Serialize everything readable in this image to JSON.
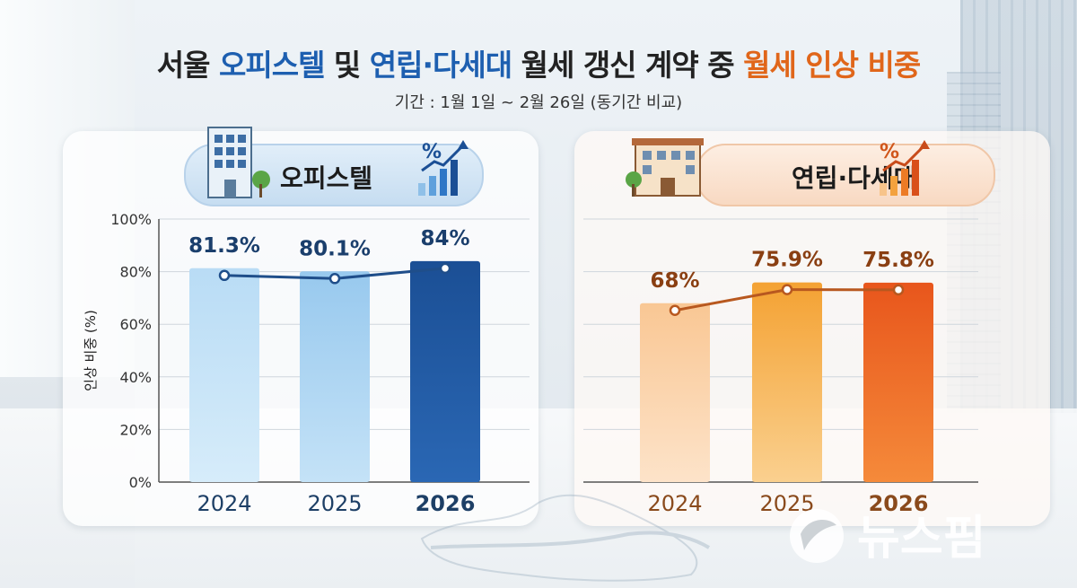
{
  "title": {
    "part1": "서울 ",
    "part2": "오피스텔",
    "part3": " 및 ",
    "part4": "연립·다세대",
    "part5": " 월세 갱신 계약 중 ",
    "part6": "월세 인상 비중"
  },
  "subtitle": "기간 : 1월 1일 ~ 2월 26일 (동기간 비교)",
  "watermark": "뉴스핌",
  "colors": {
    "title_blue": "#1d5fb0",
    "title_orange": "#e0661a",
    "office_line": "#1f4e8a",
    "villa_line": "#b8581f"
  },
  "chart_data": [
    {
      "type": "bar",
      "title": "오피스텔",
      "categories": [
        "2024",
        "2025",
        "2026"
      ],
      "values": [
        81.3,
        80.1,
        84
      ],
      "value_labels": [
        "81.3%",
        "80.1%",
        "84%"
      ],
      "ylabel": "인상 비중 (%)",
      "ylim": [
        0,
        100
      ],
      "yticks": [
        "0%",
        "20%",
        "40%",
        "60%",
        "80%",
        "100%"
      ],
      "grid": true,
      "overlay_line": true,
      "bar_colors": [
        [
          "#b9dcf5",
          "#d6ecfa"
        ],
        [
          "#98c9ee",
          "#c4e2f7"
        ],
        [
          "#1b4f95",
          "#2a67b4"
        ]
      ]
    },
    {
      "type": "bar",
      "title": "연립·다세대",
      "categories": [
        "2024",
        "2025",
        "2026"
      ],
      "values": [
        68,
        75.9,
        75.8
      ],
      "value_labels": [
        "68%",
        "75.9%",
        "75.8%"
      ],
      "ylim": [
        0,
        100
      ],
      "grid": true,
      "overlay_line": true,
      "bar_colors": [
        [
          "#f9c794",
          "#fde3c9"
        ],
        [
          "#f4a233",
          "#fad08f"
        ],
        [
          "#e8561c",
          "#f58a3a"
        ]
      ]
    }
  ]
}
